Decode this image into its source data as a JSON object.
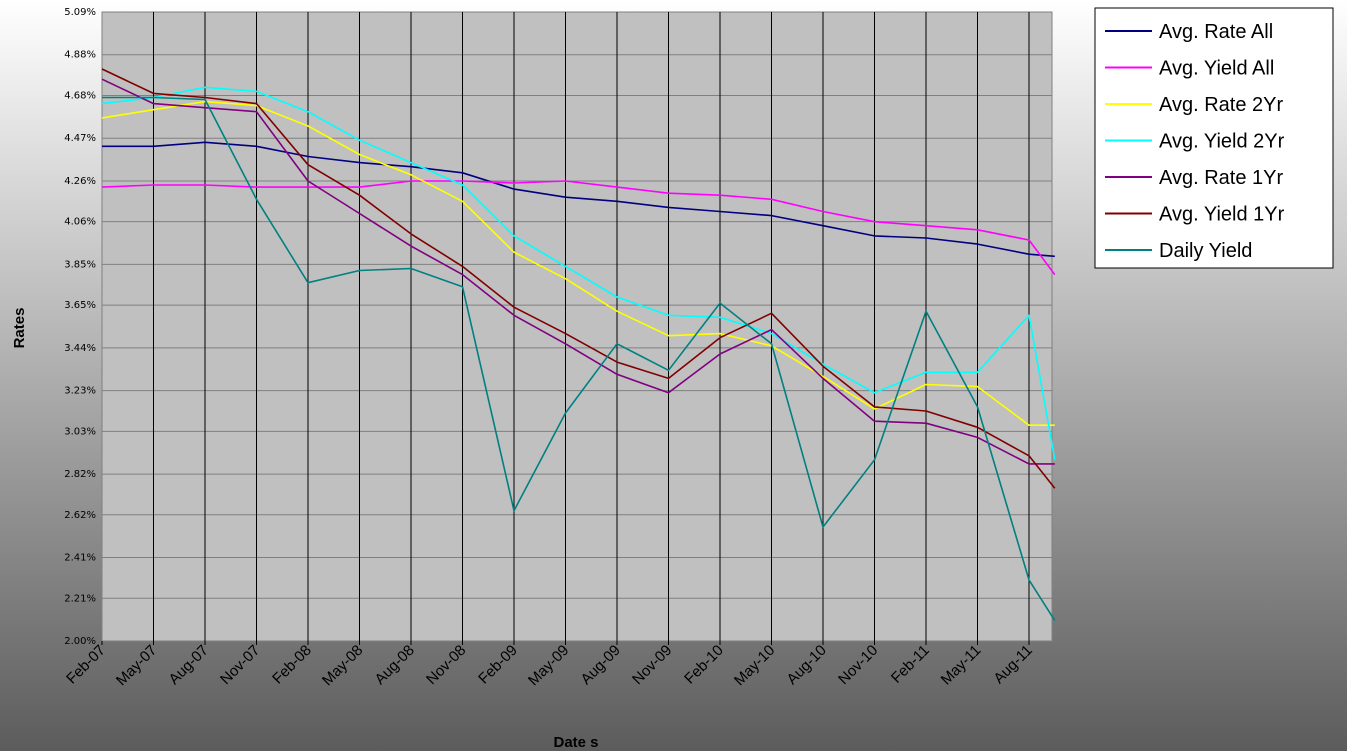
{
  "chart_data": {
    "type": "line",
    "title": "",
    "xlabel": "Date s",
    "ylabel": "Rates",
    "ylim": [
      2.0,
      5.09
    ],
    "y_ticks": [
      "5.09%",
      "4.88%",
      "4.68%",
      "4.47%",
      "4.26%",
      "4.06%",
      "3.85%",
      "3.65%",
      "3.44%",
      "3.23%",
      "3.03%",
      "2.82%",
      "2.62%",
      "2.41%",
      "2.21%",
      "2.00%"
    ],
    "y_tick_values": [
      5.09,
      4.88,
      4.68,
      4.47,
      4.26,
      4.06,
      3.85,
      3.65,
      3.44,
      3.23,
      3.03,
      2.82,
      2.62,
      2.41,
      2.21,
      2.0
    ],
    "x_ticks": [
      "Feb-07",
      "May-07",
      "Aug-07",
      "Nov-07",
      "Feb-08",
      "May-08",
      "Aug-08",
      "Nov-08",
      "Feb-09",
      "May-09",
      "Aug-09",
      "Nov-09",
      "Feb-10",
      "May-10",
      "Aug-10",
      "Nov-10",
      "Feb-11",
      "May-11",
      "Aug-11"
    ],
    "grid": {
      "vertical": true,
      "horizontal": true
    },
    "legend_position": "top-right-outside",
    "colors": {
      "plot_background": "#c0c0c0",
      "grid_major": "#000000",
      "grid_minor": "#808080",
      "background_gradient": [
        "#ffffff",
        "#5c5c5c"
      ]
    },
    "x": [
      0,
      1,
      2,
      3,
      4,
      5,
      6,
      7,
      8,
      9,
      10,
      11,
      12,
      13,
      14,
      15,
      16,
      17,
      18,
      18.5
    ],
    "series": [
      {
        "name": "Avg. Rate All",
        "color": "#000080",
        "values": [
          4.43,
          4.43,
          4.45,
          4.43,
          4.38,
          4.35,
          4.33,
          4.3,
          4.22,
          4.18,
          4.16,
          4.13,
          4.11,
          4.09,
          4.04,
          3.99,
          3.98,
          3.95,
          3.9,
          3.89
        ]
      },
      {
        "name": "Avg. Yield All",
        "color": "#ff00ff",
        "values": [
          4.23,
          4.24,
          4.24,
          4.23,
          4.23,
          4.23,
          4.26,
          4.26,
          4.25,
          4.26,
          4.23,
          4.2,
          4.19,
          4.17,
          4.11,
          4.06,
          4.04,
          4.02,
          3.97,
          3.8
        ]
      },
      {
        "name": "Avg. Rate 2Yr",
        "color": "#ffff00",
        "values": [
          4.57,
          4.61,
          4.65,
          4.63,
          4.53,
          4.39,
          4.29,
          4.16,
          3.91,
          3.78,
          3.62,
          3.5,
          3.51,
          3.45,
          3.3,
          3.14,
          3.26,
          3.25,
          3.06,
          3.06
        ]
      },
      {
        "name": "Avg. Yield 2Yr",
        "color": "#00ffff",
        "values": [
          4.64,
          4.67,
          4.72,
          4.7,
          4.6,
          4.46,
          4.35,
          4.24,
          3.99,
          3.84,
          3.69,
          3.6,
          3.59,
          3.51,
          3.36,
          3.22,
          3.32,
          3.32,
          3.6,
          2.89
        ]
      },
      {
        "name": "Avg. Rate 1Yr",
        "color": "#800080",
        "values": [
          4.76,
          4.64,
          4.62,
          4.6,
          4.26,
          4.1,
          3.94,
          3.8,
          3.6,
          3.46,
          3.31,
          3.22,
          3.41,
          3.53,
          3.29,
          3.08,
          3.07,
          3.0,
          2.87,
          2.87
        ]
      },
      {
        "name": "Avg. Yield 1Yr",
        "color": "#800000",
        "values": [
          4.81,
          4.69,
          4.67,
          4.64,
          4.34,
          4.19,
          4.0,
          3.84,
          3.64,
          3.51,
          3.37,
          3.29,
          3.49,
          3.61,
          3.35,
          3.15,
          3.13,
          3.05,
          2.91,
          2.75
        ]
      },
      {
        "name": "Daily Yield",
        "color": "#008080",
        "values": [
          4.67,
          4.67,
          4.66,
          4.17,
          3.76,
          3.82,
          3.83,
          3.74,
          2.64,
          3.12,
          3.46,
          3.33,
          3.66,
          3.46,
          2.56,
          2.89,
          3.62,
          3.15,
          2.3,
          2.1
        ]
      }
    ]
  }
}
